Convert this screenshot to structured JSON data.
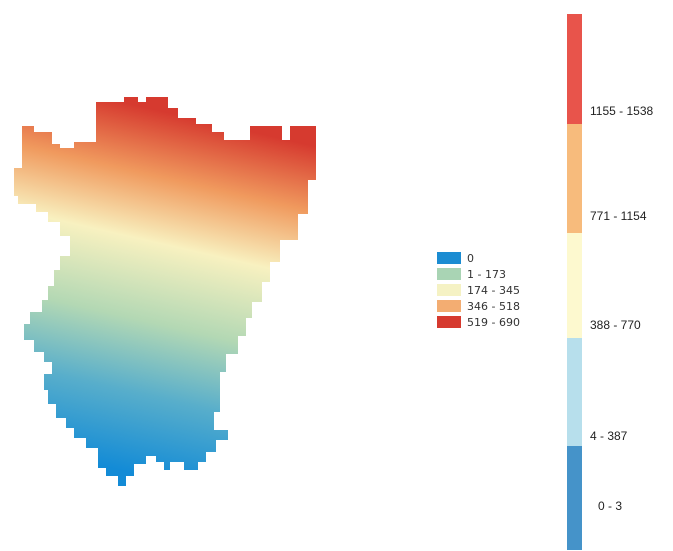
{
  "map": {
    "gradient_colors": {
      "top": "#d73a30",
      "upper": "#f4a664",
      "middle": "#f7f3c0",
      "lower": "#a8d3b0",
      "bottom": "#1f8fd4"
    }
  },
  "small_legend": {
    "items": [
      {
        "label": "0",
        "color": "#1b8cd2"
      },
      {
        "label": "1 - 173",
        "color": "#a9d4b4"
      },
      {
        "label": "174 - 345",
        "color": "#f5f2c4"
      },
      {
        "label": "346 - 518",
        "color": "#f3ad72"
      },
      {
        "label": "519 - 690",
        "color": "#d63a2f"
      }
    ]
  },
  "scale_legend": {
    "items": [
      {
        "label": "1155 - 1538",
        "color": "#e8544b"
      },
      {
        "label": "771 - 1154",
        "color": "#f7bb7c"
      },
      {
        "label": "388 - 770",
        "color": "#fdf9cf"
      },
      {
        "label": "4 - 387",
        "color": "#b7dfec"
      },
      {
        "label": "0 - 3",
        "color": "#4593c9"
      }
    ]
  }
}
